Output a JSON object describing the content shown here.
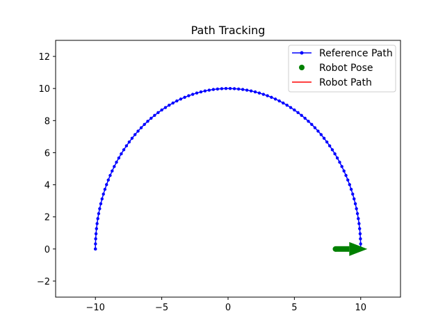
{
  "chart_data": {
    "type": "line",
    "title": "Path Tracking",
    "xlabel": "",
    "ylabel": "",
    "xlim": [
      -13,
      13
    ],
    "ylim": [
      -3,
      13
    ],
    "x_ticks": [
      -10,
      -5,
      0,
      5,
      10
    ],
    "y_ticks": [
      -2,
      0,
      2,
      4,
      6,
      8,
      10,
      12
    ],
    "x_tick_labels": [
      "−10",
      "−5",
      "0",
      "5",
      "10"
    ],
    "y_tick_labels": [
      "−2",
      "0",
      "2",
      "4",
      "6",
      "8",
      "10",
      "12"
    ],
    "grid": false,
    "legend_position": "upper right",
    "series": [
      {
        "name": "Reference Path",
        "kind": "line-with-markers",
        "color": "#0000ff",
        "shape": "semicircle",
        "center": [
          0,
          0
        ],
        "radius": 10,
        "angle_start_deg": 180,
        "angle_end_deg": 0,
        "num_points": 100
      },
      {
        "name": "Robot Pose",
        "kind": "marker",
        "color": "#008000",
        "x": [
          8.1
        ],
        "y": [
          0.0
        ],
        "heading_deg": 0,
        "arrow_tip": [
          10.5,
          0.0
        ]
      },
      {
        "name": "Robot Path",
        "kind": "line",
        "color": "#ff0000",
        "x": [],
        "y": []
      }
    ]
  }
}
